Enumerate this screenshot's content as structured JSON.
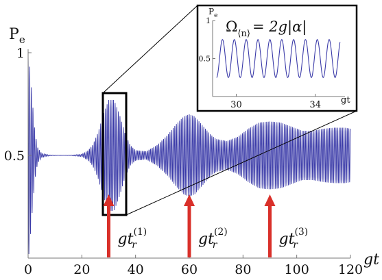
{
  "chart_data": [
    {
      "type": "line",
      "title": "",
      "xlabel": "gt",
      "ylabel": "P",
      "ylabel_sub": "e",
      "xlim": [
        0,
        120
      ],
      "ylim": [
        0,
        1
      ],
      "xticks": [
        0,
        20,
        40,
        60,
        80,
        100,
        120
      ],
      "xtick_labels": [
        "0",
        "20",
        "40",
        "60",
        "80",
        "100",
        "120"
      ],
      "yticks": [
        0.5,
        1
      ],
      "ytick_labels": [
        "0.5",
        "1"
      ],
      "series_color": "#3a3aa8",
      "envelope": {
        "baseline": 0.5,
        "x": [
          0,
          0.3,
          0.8,
          1.5,
          2.5,
          3.5,
          5,
          8,
          12,
          16,
          20,
          22,
          24,
          26,
          28,
          30,
          32,
          34,
          36,
          38,
          40,
          44,
          48,
          52,
          55,
          58,
          60,
          62,
          64,
          66,
          68,
          70,
          74,
          78,
          82,
          86,
          90,
          94,
          98,
          102,
          106,
          110,
          114,
          118,
          120
        ],
        "amplitude": [
          0.5,
          0.48,
          0.4,
          0.28,
          0.12,
          0.04,
          0.01,
          0.002,
          0.0,
          0.001,
          0.006,
          0.02,
          0.05,
          0.11,
          0.2,
          0.27,
          0.27,
          0.2,
          0.11,
          0.05,
          0.025,
          0.02,
          0.05,
          0.1,
          0.15,
          0.19,
          0.2,
          0.19,
          0.16,
          0.13,
          0.1,
          0.08,
          0.07,
          0.09,
          0.13,
          0.16,
          0.165,
          0.16,
          0.14,
          0.12,
          0.12,
          0.13,
          0.135,
          0.135,
          0.13
        ]
      },
      "annotations": [
        {
          "x": 30,
          "label": "gt",
          "superscript": "(1)",
          "subscript": "r"
        },
        {
          "x": 60,
          "label": "gt",
          "superscript": "(2)",
          "subscript": "r"
        },
        {
          "x": 90,
          "label": "gt",
          "superscript": "(3)",
          "subscript": "r"
        }
      ],
      "arrow_color": "#d9302a",
      "zoom_region": {
        "x": [
          29,
          36.5
        ],
        "y": [
          0.23,
          0.78
        ]
      }
    },
    {
      "type": "line",
      "title_lhs": "Ω",
      "title_sub": "⟨n⟩",
      "title_rhs": "= 2g|α|",
      "xlabel": "gt",
      "ylabel": "P",
      "ylabel_sub": "e",
      "xlim": [
        28.8,
        35.5
      ],
      "ylim": [
        0,
        1
      ],
      "xticks": [
        30,
        34
      ],
      "xtick_labels": [
        "30",
        "34"
      ],
      "yticks": [
        0.5,
        1
      ],
      "ytick_labels": [
        "0.5",
        "1"
      ],
      "series": [
        {
          "function": "sine",
          "mean": 0.5,
          "amplitude": 0.25,
          "period": 0.6,
          "x_start": 29.0,
          "x_end": 35.25
        }
      ]
    }
  ]
}
